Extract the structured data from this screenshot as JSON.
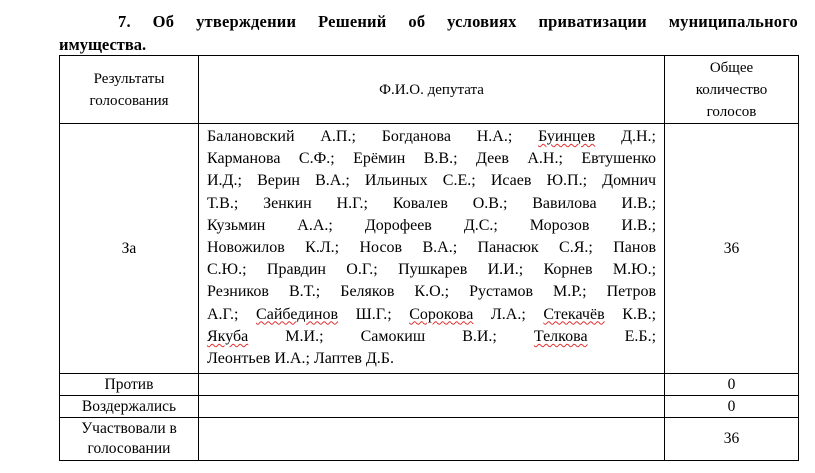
{
  "heading": {
    "line1": "7. Об утверждении Решений об условиях приватизации муниципального",
    "line2": "имущества."
  },
  "table": {
    "headers": [
      "Результаты голосования",
      "Ф.И.О. депутата",
      "Общее количество голосов"
    ],
    "header_lines": {
      "col1": [
        "Результаты",
        "голосования"
      ],
      "col3": [
        "Общее",
        "количество",
        "голосов"
      ]
    },
    "rows": [
      {
        "result": "За",
        "names_lines": [
          "Балановский А.П.; Богданова Н.А.; Буинцев Д.Н.;",
          "Карманова С.Ф.; Ерёмин В.В.; Деев А.Н.; Евтушенко",
          "И.Д.; Верин В.А.; Ильиных С.Е.; Исаев Ю.П.; Домнич",
          "Т.В.; Зенкин Н.Г.; Ковалев О.В.; Вавилова И.В.;",
          "Кузьмин А.А.; Дорофеев Д.С.; Морозов И.В.;",
          "Новожилов К.Л.; Носов В.А.; Панасюк С.Я.; Панов",
          "С.Ю.; Правдин О.Г.; Пушкарев И.И.; Корнев М.Ю.;",
          "Резников В.Т.; Беляков К.О.; Рустамов М.Р.; Петров",
          "А.Г.; Сайбединов Ш.Г.; Сорокова Л.А.; Стекачёв К.В.;",
          "Якуба М.И.; Самокиш В.И.; Телкова Е.Б.;",
          "Леонтьев И.А.; Лаптев Д.Б."
        ],
        "count": "36"
      },
      {
        "result": "Против",
        "names": "",
        "count": "0"
      },
      {
        "result": "Воздержались",
        "names": "",
        "count": "0"
      },
      {
        "result_lines": [
          "Участвовали в",
          "голосовании"
        ],
        "names": "",
        "count": "36"
      }
    ],
    "spellcheck_flagged": [
      "Буинцев",
      "Сайбединов",
      "Сорокова",
      "Стекачёв",
      "Якуба",
      "Телкова"
    ],
    "spellcheck_color": "#e03030"
  }
}
